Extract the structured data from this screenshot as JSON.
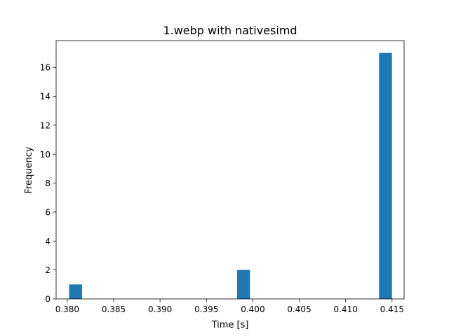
{
  "chart_data": {
    "type": "bar",
    "title": "1.webp with nativesimd",
    "xlabel": "Time [s]",
    "ylabel": "Frequency",
    "xlim": [
      0.3788,
      0.4163
    ],
    "ylim": [
      0,
      17.85
    ],
    "bin_width": 0.00139,
    "bars": [
      {
        "x_start": 0.3802,
        "height": 1
      },
      {
        "x_start": 0.3983,
        "height": 2
      },
      {
        "x_start": 0.4136,
        "height": 17
      }
    ],
    "xticks": [
      0.38,
      0.385,
      0.39,
      0.395,
      0.4,
      0.405,
      0.41,
      0.415
    ],
    "xtick_labels": [
      "0.380",
      "0.385",
      "0.390",
      "0.395",
      "0.400",
      "0.405",
      "0.410",
      "0.415"
    ],
    "yticks": [
      0,
      2,
      4,
      6,
      8,
      10,
      12,
      14,
      16
    ],
    "ytick_labels": [
      "0",
      "2",
      "4",
      "6",
      "8",
      "10",
      "12",
      "14",
      "16"
    ],
    "bar_color": "#1f77b4",
    "grid": false,
    "legend": "none"
  }
}
